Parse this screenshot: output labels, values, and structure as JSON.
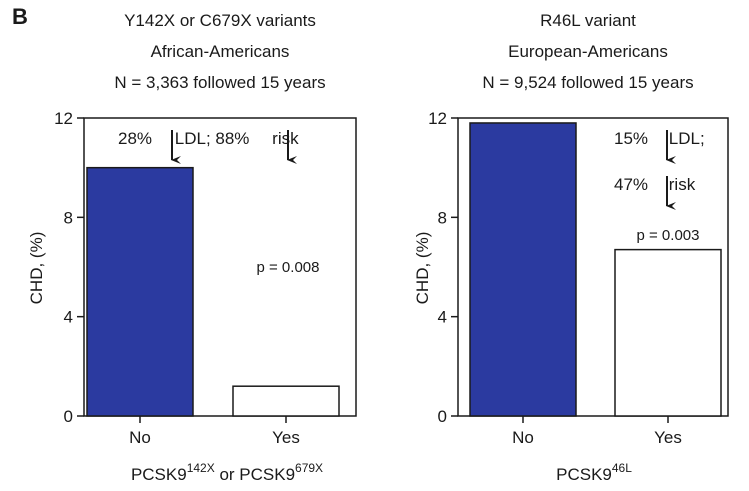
{
  "panel_label": "B",
  "colors": {
    "bar_blue": "#2b3aa0",
    "bar_outline": "#1a1a1a",
    "bar_white": "#ffffff"
  },
  "chart_data": [
    {
      "type": "bar",
      "header_lines": [
        "Y142X or C679X variants",
        "African-Americans",
        "N = 3,363 followed 15 years"
      ],
      "ylabel": "CHD, (%)",
      "ylim": [
        0,
        12
      ],
      "yticks": [
        "0",
        "4",
        "8",
        "12"
      ],
      "categories": [
        "No",
        "Yes"
      ],
      "values": [
        10.0,
        1.2
      ],
      "bar_fills": [
        "blue",
        "white"
      ],
      "annotation_parts": [
        "28%",
        "LDL; 88%",
        "risk"
      ],
      "p_value": "p = 0.008",
      "xlabel_parts": [
        "PCSK9",
        "142X",
        " or PCSK9",
        "679X"
      ]
    },
    {
      "type": "bar",
      "header_lines": [
        "R46L variant",
        "European-Americans",
        "N = 9,524 followed 15 years"
      ],
      "ylabel": "CHD, (%)",
      "ylim": [
        0,
        12
      ],
      "yticks": [
        "0",
        "4",
        "8",
        "12"
      ],
      "categories": [
        "No",
        "Yes"
      ],
      "values": [
        11.8,
        6.7
      ],
      "bar_fills": [
        "blue",
        "white"
      ],
      "annotation_line1": [
        "15%",
        "LDL;"
      ],
      "annotation_line2": [
        "47%",
        "risk"
      ],
      "p_value": "p = 0.003",
      "xlabel_parts": [
        "PCSK9",
        "46L"
      ]
    }
  ]
}
